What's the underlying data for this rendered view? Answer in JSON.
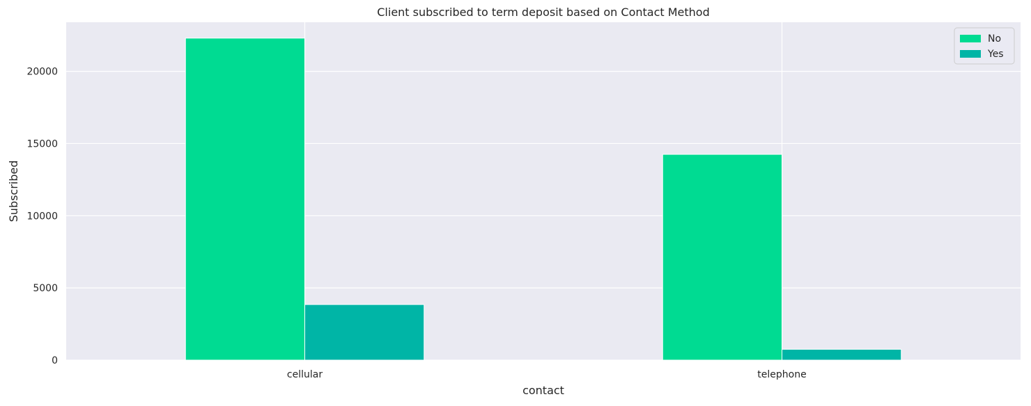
{
  "chart_data": {
    "type": "bar",
    "title": "Client subscribed to term deposit based on Contact Method",
    "xlabel": "contact",
    "ylabel": "Subscribed",
    "categories": [
      "cellular",
      "telephone"
    ],
    "series": [
      {
        "name": "No",
        "values": [
          22300,
          14250
        ],
        "color": "#00db92"
      },
      {
        "name": "Yes",
        "values": [
          3850,
          750
        ],
        "color": "#00b5a6"
      }
    ],
    "ylim": [
      0,
      23400
    ],
    "yticks": [
      0,
      5000,
      10000,
      15000,
      20000
    ],
    "ytick_labels": [
      "0",
      "5000",
      "10000",
      "15000",
      "20000"
    ],
    "grid": true,
    "legend_position": "top-right",
    "background_color": "#eaeaf2",
    "grid_color": "#ffffff"
  }
}
